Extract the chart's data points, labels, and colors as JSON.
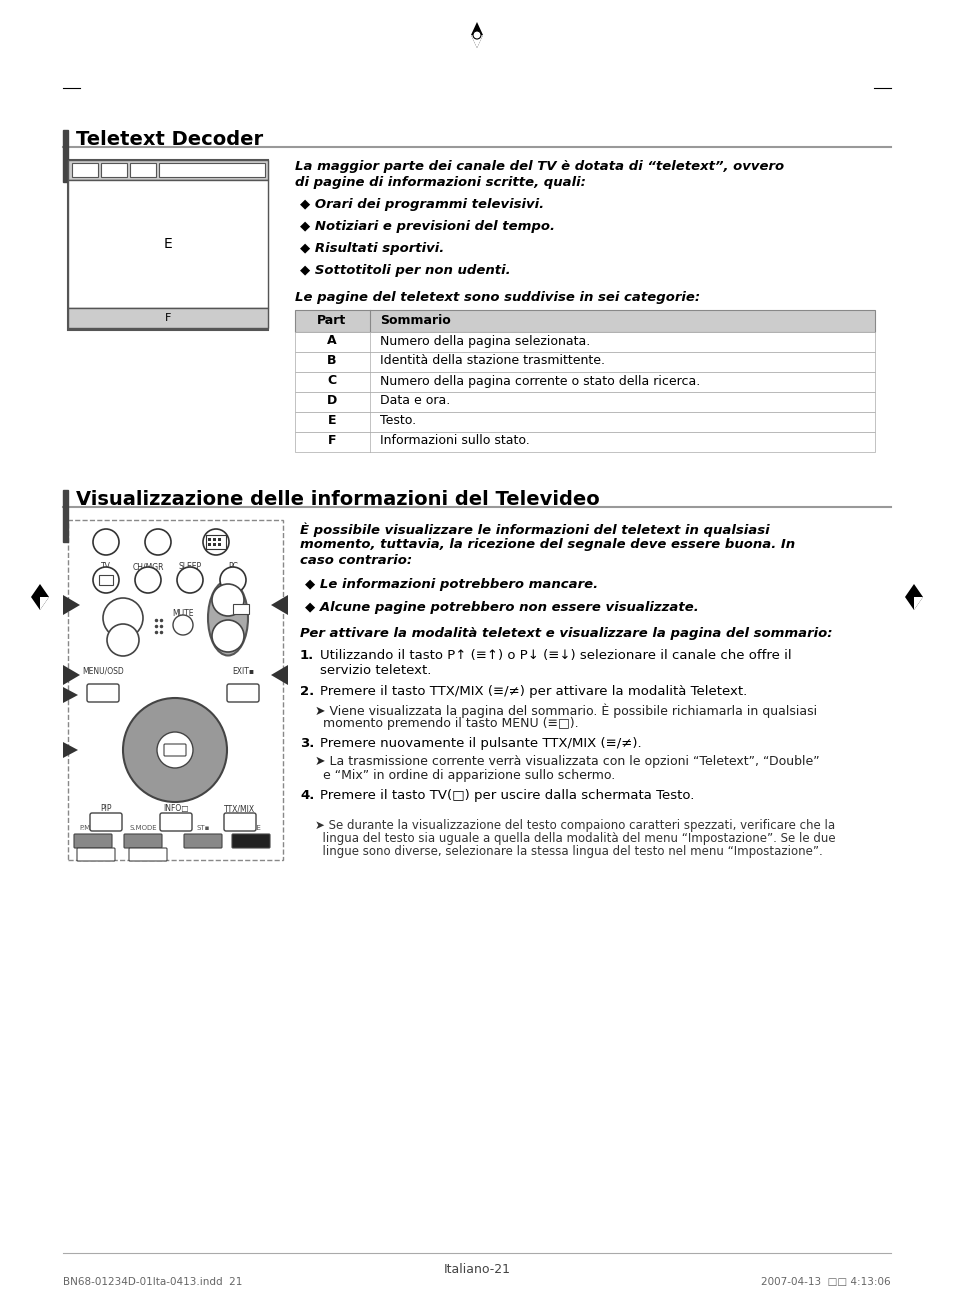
{
  "page_bg": "#ffffff",
  "title1": "Teletext Decoder",
  "title2": "Visualizzazione delle informazioni del Televideo",
  "section1_text_intro_line1": "La maggior parte dei canale del TV è dotata di “teletext”, ovvero",
  "section1_text_intro_line2": "di pagine di informazioni scritte, quali:",
  "section1_bullets": [
    "Orari dei programmi televisivi.",
    "Notiziari e previsioni del tempo.",
    "Risultati sportivi.",
    "Sottotitoli per non udenti."
  ],
  "section1_table_intro": "Le pagine del teletext sono suddivise in sei categorie:",
  "table_header": [
    "Part",
    "Sommario"
  ],
  "table_rows": [
    [
      "A",
      "Numero della pagina selezionata."
    ],
    [
      "B",
      "Identità della stazione trasmittente."
    ],
    [
      "C",
      "Numero della pagina corrente o stato della ricerca."
    ],
    [
      "D",
      "Data e ora."
    ],
    [
      "E",
      "Testo."
    ],
    [
      "F",
      "Informazioni sullo stato."
    ]
  ],
  "section2_intro_line1": "È possibile visualizzare le informazioni del teletext in qualsiasi",
  "section2_intro_line2": "momento, tuttavia, la ricezione del segnale deve essere buona. In",
  "section2_intro_line3": "caso contrario:",
  "section2_bullets": [
    "Le informazioni potrebbero mancare.",
    "Alcune pagine potrebbero non essere visualizzate."
  ],
  "section2_para": "Per attivare la modalità teletext e visualizzare la pagina del sommario:",
  "step1_bold": "1.",
  "step1_text": "Utilizzando il tasto P↑ (≡↑) o P↓ (≡↓) selezionare il canale che offre il",
  "step1_text2": "servizio teletext.",
  "step2_bold": "2.",
  "step2_text": "Premere il tasto TTX/MIX (≡/≠) per attivare la modalità Teletext.",
  "step2_sub1": "Viene visualizzata la pagina del sommario. È possibile richiamarla in qualsiasi",
  "step2_sub2": "momento premendo il tasto MENU (≡□).",
  "step3_bold": "3.",
  "step3_text": "Premere nuovamente il pulsante TTX/MIX (≡/≠).",
  "step3_sub1": "La trasmissione corrente verrà visualizzata con le opzioni “Teletext”, “Double”",
  "step3_sub2": "e “Mix” in ordine di apparizione sullo schermo.",
  "step4_bold": "4.",
  "step4_text": "Premere il tasto TV(□) per uscire dalla schermata Testo.",
  "footer_sub1": "Se durante la visualizzazione del testo compaiono caratteri spezzati, verificare che la",
  "footer_sub2": "lingua del testo sia uguale a quella della modalità del menu “Impostazione”. Se le due",
  "footer_sub3": "lingue sono diverse, selezionare la stessa lingua del testo nel menu “Impostazione”.",
  "page_num": "Italiano-21",
  "footer_left": "BN68-01234D-01Ita-0413.indd  21",
  "footer_right": "2007-04-13  □□ 4:13:06"
}
